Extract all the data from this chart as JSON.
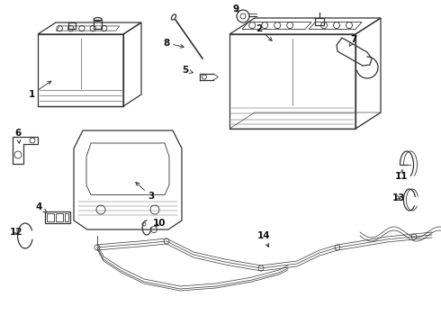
{
  "background_color": "#ffffff",
  "line_color": "#333333",
  "text_color": "#111111",
  "fig_width": 4.9,
  "fig_height": 3.6,
  "dpi": 100
}
